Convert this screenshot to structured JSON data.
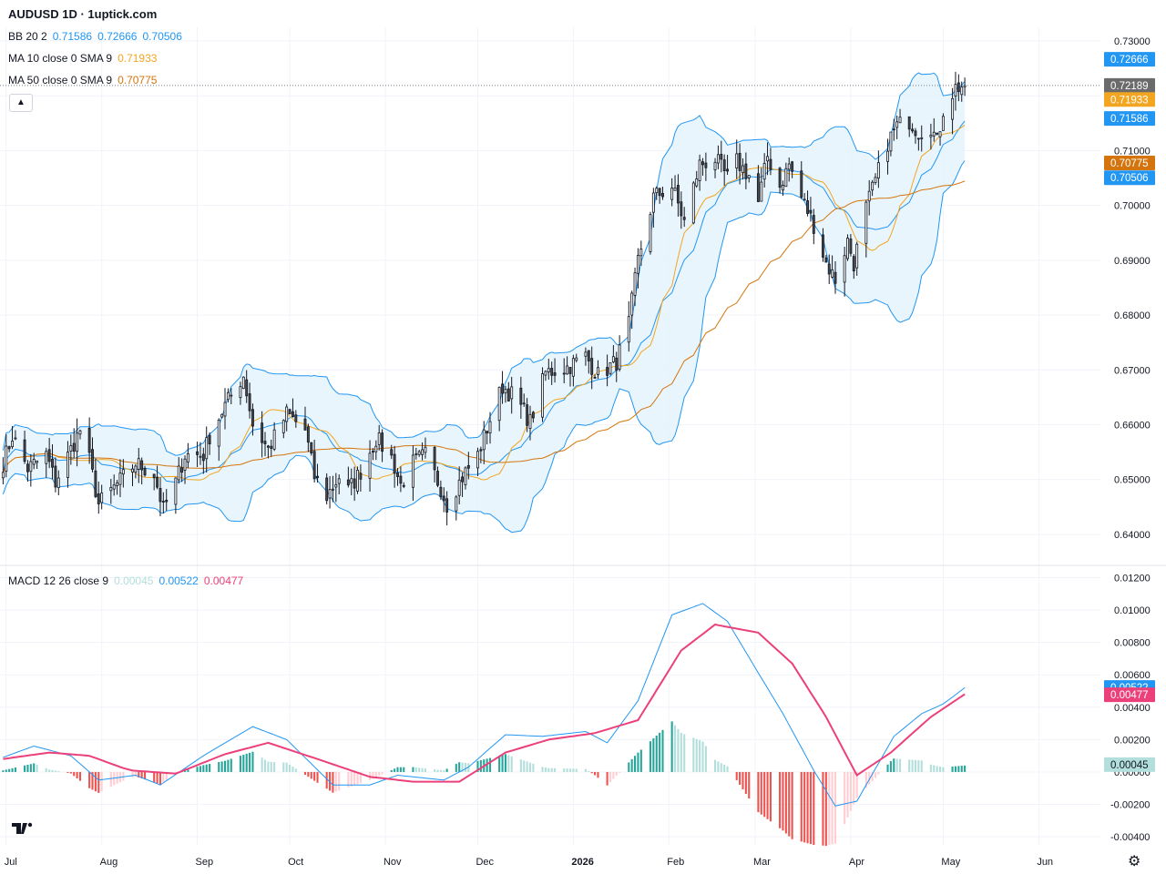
{
  "header": {
    "title": "AUDUSD 1D · 1uptick.com"
  },
  "legend": {
    "bb": {
      "label": "BB 20 2",
      "values": [
        "0.71586",
        "0.72666",
        "0.70506"
      ]
    },
    "ma10": {
      "label": "MA 10 close 0 SMA 9",
      "value": "0.71933"
    },
    "ma50": {
      "label": "MA 50 close 0 SMA 9",
      "value": "0.70775"
    },
    "macd": {
      "label": "MACD 12 26 close 9",
      "values": [
        "0.00045",
        "0.00522",
        "0.00477"
      ]
    }
  },
  "colors": {
    "up": "#ffffff",
    "down": "#4a4a4a",
    "wick": "#131722",
    "bb": "#2196f3",
    "bb_fill": "#e3f2fd",
    "ma10": "#f2a520",
    "ma50": "#d4740c",
    "macd_line": "#2196f3",
    "signal_line": "#ec407a",
    "hist_up_strong": "#26a69a",
    "hist_up_weak": "#b2dfdb",
    "hist_down_strong": "#ef5350",
    "hist_down_weak": "#ffcdd2"
  },
  "icons": {
    "collapse": "chevron-up-icon",
    "logo": "tradingview-logo-icon",
    "settings": "gear-icon"
  },
  "chart_data": [
    {
      "type": "candlestick",
      "title": "AUDUSD 1D",
      "ylim": [
        0.6345,
        0.7325
      ],
      "yticks": [
        "0.64000",
        "0.65000",
        "0.66000",
        "0.67000",
        "0.68000",
        "0.69000",
        "0.70000",
        "0.71000",
        "0.72000",
        "0.73000"
      ],
      "x_axis_labels": [
        "Jul",
        "Aug",
        "Sep",
        "Oct",
        "Nov",
        "Dec",
        "2026",
        "Feb",
        "Mar",
        "Apr",
        "May",
        "Jun"
      ],
      "x_axis_label_dates": [
        "2025-07-01",
        "2025-08-01",
        "2025-09-01",
        "2025-10-01",
        "2025-11-01",
        "2025-12-01",
        "2026-01-01",
        "2026-02-01",
        "2026-03-01",
        "2026-04-01",
        "2026-05-01",
        "2026-06-01"
      ],
      "x_range": [
        "2025-06-29",
        "2026-06-21"
      ],
      "last_date": "2026-05-08",
      "close_anchors": [
        [
          "2025-06-30",
          0.653
        ],
        [
          "2025-07-03",
          0.658
        ],
        [
          "2025-07-08",
          0.652
        ],
        [
          "2025-07-14",
          0.6545
        ],
        [
          "2025-07-17",
          0.6495
        ],
        [
          "2025-07-22",
          0.6555
        ],
        [
          "2025-07-25",
          0.659
        ],
        [
          "2025-07-28",
          0.6535
        ],
        [
          "2025-07-31",
          0.6455
        ],
        [
          "2025-08-05",
          0.6485
        ],
        [
          "2025-08-12",
          0.653
        ],
        [
          "2025-08-18",
          0.651
        ],
        [
          "2025-08-21",
          0.6445
        ],
        [
          "2025-08-25",
          0.6495
        ],
        [
          "2025-08-28",
          0.6545
        ],
        [
          "2025-09-03",
          0.6545
        ],
        [
          "2025-09-05",
          0.658
        ],
        [
          "2025-09-10",
          0.6635
        ],
        [
          "2025-09-16",
          0.669
        ],
        [
          "2025-09-19",
          0.66
        ],
        [
          "2025-09-24",
          0.6555
        ],
        [
          "2025-09-30",
          0.662
        ],
        [
          "2025-10-06",
          0.659
        ],
        [
          "2025-10-09",
          0.6505
        ],
        [
          "2025-10-13",
          0.647
        ],
        [
          "2025-10-17",
          0.6505
        ],
        [
          "2025-10-20",
          0.648
        ],
        [
          "2025-10-24",
          0.6515
        ],
        [
          "2025-10-29",
          0.6575
        ],
        [
          "2025-11-03",
          0.654
        ],
        [
          "2025-11-06",
          0.649
        ],
        [
          "2025-11-10",
          0.653
        ],
        [
          "2025-11-14",
          0.6545
        ],
        [
          "2025-11-19",
          0.6485
        ],
        [
          "2025-11-21",
          0.6455
        ],
        [
          "2025-11-26",
          0.6505
        ],
        [
          "2025-12-01",
          0.6545
        ],
        [
          "2025-12-05",
          0.661
        ],
        [
          "2025-12-09",
          0.667
        ],
        [
          "2025-12-12",
          0.6655
        ],
        [
          "2025-12-16",
          0.6625
        ],
        [
          "2025-12-18",
          0.6605
        ],
        [
          "2025-12-23",
          0.6695
        ],
        [
          "2025-12-30",
          0.6705
        ],
        [
          "2026-01-05",
          0.6725
        ],
        [
          "2026-01-09",
          0.669
        ],
        [
          "2026-01-15",
          0.6715
        ],
        [
          "2026-01-19",
          0.6785
        ],
        [
          "2026-01-22",
          0.69
        ],
        [
          "2026-01-27",
          0.7015
        ],
        [
          "2026-02-02",
          0.7035
        ],
        [
          "2026-02-06",
          0.697
        ],
        [
          "2026-02-11",
          0.7075
        ],
        [
          "2026-02-16",
          0.7085
        ],
        [
          "2026-02-20",
          0.705
        ],
        [
          "2026-02-23",
          0.708
        ],
        [
          "2026-02-27",
          0.7055
        ],
        [
          "2026-03-02",
          0.7005
        ],
        [
          "2026-03-05",
          0.709
        ],
        [
          "2026-03-09",
          0.7035
        ],
        [
          "2026-03-12",
          0.7075
        ],
        [
          "2026-03-16",
          0.7015
        ],
        [
          "2026-03-20",
          0.6965
        ],
        [
          "2026-03-24",
          0.6895
        ],
        [
          "2026-03-27",
          0.6865
        ],
        [
          "2026-03-31",
          0.6935
        ],
        [
          "2026-04-02",
          0.6895
        ],
        [
          "2026-04-06",
          0.6995
        ],
        [
          "2026-04-09",
          0.7045
        ],
        [
          "2026-04-13",
          0.7115
        ],
        [
          "2026-04-16",
          0.7145
        ],
        [
          "2026-04-20",
          0.7155
        ],
        [
          "2026-04-23",
          0.7135
        ],
        [
          "2026-04-27",
          0.7145
        ],
        [
          "2026-04-29",
          0.7115
        ],
        [
          "2026-05-01",
          0.7175
        ],
        [
          "2026-05-05",
          0.7215
        ],
        [
          "2026-05-08",
          0.7219
        ]
      ],
      "price_labels": [
        {
          "value": "0.72666",
          "price": 0.72666,
          "color": "#2196f3"
        },
        {
          "value": "0.72189",
          "price": 0.72189,
          "color": "#6b6b6b"
        },
        {
          "value": "0.71933",
          "price": 0.71933,
          "color": "#f2a520"
        },
        {
          "value": "0.71586",
          "price": 0.71586,
          "color": "#2196f3"
        },
        {
          "value": "0.70775",
          "price": 0.70775,
          "color": "#d4740c"
        },
        {
          "value": "0.70506",
          "price": 0.70506,
          "color": "#2196f3"
        }
      ],
      "indicators": [
        "Bollinger Bands 20 2",
        "SMA 10",
        "SMA 50"
      ]
    },
    {
      "type": "macd",
      "title": "MACD 12 26 close 9",
      "ylim": [
        -0.0045,
        0.0127
      ],
      "yticks": [
        "0.01200",
        "0.01000",
        "0.00800",
        "0.00600",
        "0.00400",
        "0.00200",
        "0.00000",
        "-0.00200",
        "-0.00400"
      ],
      "macd_anchors": [
        [
          "2025-06-30",
          0.0009
        ],
        [
          "2025-07-10",
          0.0016
        ],
        [
          "2025-07-22",
          0.001
        ],
        [
          "2025-07-31",
          -0.0005
        ],
        [
          "2025-08-12",
          -0.0002
        ],
        [
          "2025-08-20",
          -0.0008
        ],
        [
          "2025-09-03",
          0.001
        ],
        [
          "2025-09-19",
          0.0028
        ],
        [
          "2025-09-30",
          0.002
        ],
        [
          "2025-10-15",
          -0.0008
        ],
        [
          "2025-10-27",
          -0.0008
        ],
        [
          "2025-11-05",
          -0.0002
        ],
        [
          "2025-11-20",
          -0.0005
        ],
        [
          "2025-11-28",
          0.0003
        ],
        [
          "2025-12-10",
          0.0023
        ],
        [
          "2025-12-22",
          0.0022
        ],
        [
          "2026-01-05",
          0.0025
        ],
        [
          "2026-01-12",
          0.0018
        ],
        [
          "2026-01-22",
          0.0044
        ],
        [
          "2026-02-02",
          0.0097
        ],
        [
          "2026-02-12",
          0.0104
        ],
        [
          "2026-02-20",
          0.0093
        ],
        [
          "2026-03-03",
          0.0058
        ],
        [
          "2026-03-10",
          0.0036
        ],
        [
          "2026-03-20",
          0.0001
        ],
        [
          "2026-03-27",
          -0.0021
        ],
        [
          "2026-04-03",
          -0.0018
        ],
        [
          "2026-04-15",
          0.0022
        ],
        [
          "2026-04-24",
          0.0036
        ],
        [
          "2026-05-01",
          0.0042
        ],
        [
          "2026-05-08",
          0.0052
        ]
      ],
      "signal_anchors": [
        [
          "2025-06-30",
          0.0008
        ],
        [
          "2025-07-15",
          0.0012
        ],
        [
          "2025-07-28",
          0.001
        ],
        [
          "2025-08-10",
          0.0001
        ],
        [
          "2025-08-25",
          -0.0001
        ],
        [
          "2025-09-10",
          0.0011
        ],
        [
          "2025-09-24",
          0.0018
        ],
        [
          "2025-10-10",
          0.0008
        ],
        [
          "2025-10-27",
          -0.0003
        ],
        [
          "2025-11-10",
          -0.0006
        ],
        [
          "2025-11-25",
          -0.0006
        ],
        [
          "2025-12-10",
          0.0012
        ],
        [
          "2025-12-24",
          0.002
        ],
        [
          "2026-01-08",
          0.0024
        ],
        [
          "2026-01-22",
          0.0032
        ],
        [
          "2026-02-05",
          0.0075
        ],
        [
          "2026-02-16",
          0.0091
        ],
        [
          "2026-03-02",
          0.0086
        ],
        [
          "2026-03-13",
          0.0067
        ],
        [
          "2026-03-24",
          0.0034
        ],
        [
          "2026-04-03",
          -0.0002
        ],
        [
          "2026-04-14",
          0.0012
        ],
        [
          "2026-04-27",
          0.0034
        ],
        [
          "2026-05-08",
          0.0048
        ]
      ],
      "price_labels": [
        {
          "value": "0.00522",
          "price": 0.00522,
          "color": "#2196f3"
        },
        {
          "value": "0.00477",
          "price": 0.00477,
          "color": "#ec407a"
        },
        {
          "value": "0.00045",
          "price": 0.00045,
          "color": "#b2dfdb"
        }
      ]
    }
  ]
}
